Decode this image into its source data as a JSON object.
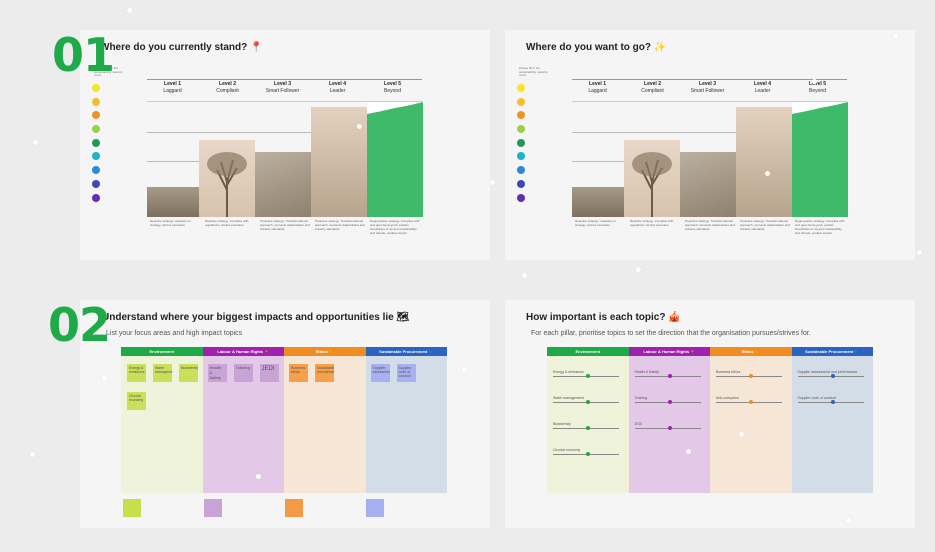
{
  "section1": {
    "number": "01",
    "title": "Where do you currently stand? 📍",
    "tiny_note": "Please fill with the sustainability maturity curve",
    "levels": [
      {
        "name": "Level 1",
        "label": "Laggard"
      },
      {
        "name": "Level 2",
        "label": "Compliant"
      },
      {
        "name": "Level 3",
        "label": "Smart Follower"
      },
      {
        "name": "Level 4",
        "label": "Leader"
      },
      {
        "name": "Level 5",
        "label": "Beyond"
      }
    ],
    "descriptions": [
      "Reactive strategy. Unaware on strategy, ad-hoc execution",
      "Reactive strategy. Complies with regulations, limited execution",
      "Proactive strategy. Transformational approach, connects stakeholders and industry standards",
      "Proactive strategy. Transformational approach, connects stakeholders and industry standards",
      "Regenerative strategy. Complies with and goes far beyond, pushes boundaries of not just sustainability and climate, positive impact"
    ]
  },
  "section2": {
    "number": "",
    "title": "Where do you want to go? ✨",
    "tiny_note": "Please fill in the sustainability maturity curve"
  },
  "section3": {
    "number": "02",
    "title": "Understand where your biggest impacts and opportunities lie 🗺",
    "subtitle": "List your focus areas and high impact topics",
    "columns": [
      {
        "label": "Environment",
        "color": "#1faa4a",
        "bg": "#eef3d9",
        "notes": [
          "Energy & emissions",
          "Water management",
          "Biodiversity",
          "Circular economy"
        ],
        "note_color": "#c9e05a"
      },
      {
        "label": "Labour & Human Rights 🏃",
        "color": "#a020b0",
        "bg": "#e4c8e8",
        "notes": [
          "Health & Safety",
          "Training",
          "JEDI"
        ],
        "note_color": "#c9a3d6"
      },
      {
        "label": "Ethics 🔶",
        "color": "#f08c20",
        "bg": "#f6e6d6",
        "notes": [
          "Business ethics",
          "Sustainable procurement"
        ],
        "note_color": "#f5a04a"
      },
      {
        "label": "Sustainable Procurement 🔵",
        "color": "#2a63c0",
        "bg": "#d3dde8",
        "notes": [
          "Supplier assessment",
          "Supplier code of conduct"
        ],
        "note_color": "#a7b0f0"
      }
    ],
    "swatch_colors": [
      "#c5e04a",
      "#c9a3d6",
      "#f39a45",
      "#a7b0f0"
    ]
  },
  "section4": {
    "title": "How important is each topic? 🎪",
    "subtitle": "For each pillar, prioritise topics to set the direction that the organisation pursues/strives for.",
    "columns": [
      {
        "label": "Environment",
        "color": "#1faa4a",
        "bg": "#eef3d9",
        "topics": [
          "Energy & emissions",
          "Water management",
          "Biodiversity",
          "Circular economy"
        ],
        "knob_color": "#1faa4a"
      },
      {
        "label": "Labour & Human Rights 🏃",
        "color": "#a020b0",
        "bg": "#e4c8e8",
        "topics": [
          "Health & Safety",
          "Training",
          "JEDI"
        ],
        "knob_color": "#a020b0"
      },
      {
        "label": "Ethics 🔶",
        "color": "#f08c20",
        "bg": "#f6e6d6",
        "topics": [
          "Business ethics",
          "Anti-corruption"
        ],
        "knob_color": "#f08c20"
      },
      {
        "label": "Sustainable Procurement 🔵",
        "color": "#2a63c0",
        "bg": "#d3dde8",
        "topics": [
          "Supplier assessment and performance",
          "Supplier code of conduct"
        ],
        "knob_color": "#2a63c0"
      }
    ],
    "slider_low": "Low",
    "slider_high": "High"
  },
  "legend_dots": [
    "#f5e62a",
    "#f3c028",
    "#f0902a",
    "#9ad14a",
    "#1f9a56",
    "#18b4c8",
    "#2a8ad8",
    "#3a4ab0",
    "#6a2ab8"
  ],
  "maturity_colors": {
    "level5_fill": "#3fba6a",
    "photo_tone_1": "#8a7d6a",
    "photo_tone_2": "#e7d6c6",
    "photo_tone_3": "#a6998a",
    "photo_tone_4": "#cdbca9"
  }
}
